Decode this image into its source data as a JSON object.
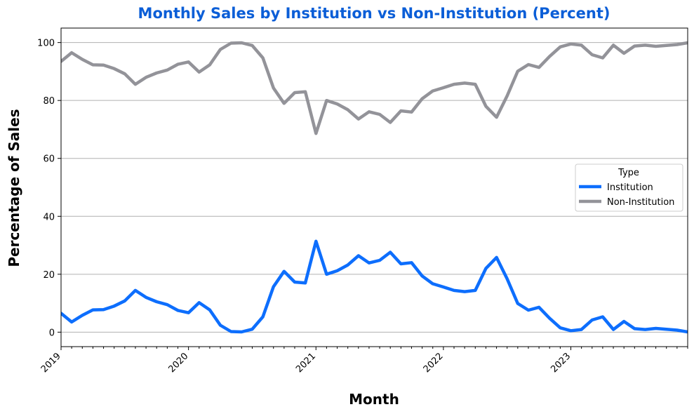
{
  "colors": {
    "title": "#0b5ed7",
    "grid": "#b0b0b0"
  },
  "chart_data": {
    "type": "line",
    "title": "Monthly Sales by Institution vs Non-Institution (Percent)",
    "xlabel": "Month",
    "ylabel": "Percentage of Sales",
    "x_tick_labels": [
      "2019",
      "2020",
      "2021",
      "2022",
      "2023"
    ],
    "y_ticks": [
      0,
      20,
      40,
      60,
      80,
      100
    ],
    "ylim": [
      -5,
      105
    ],
    "grid": "horizontal",
    "legend": {
      "title": "Type",
      "placement": "center-right"
    },
    "x": [
      "2019-01",
      "2019-02",
      "2019-03",
      "2019-04",
      "2019-05",
      "2019-06",
      "2019-07",
      "2019-08",
      "2019-09",
      "2019-10",
      "2019-11",
      "2019-12",
      "2020-01",
      "2020-02",
      "2020-03",
      "2020-04",
      "2020-05",
      "2020-06",
      "2020-07",
      "2020-08",
      "2020-09",
      "2020-10",
      "2020-11",
      "2020-12",
      "2021-01",
      "2021-02",
      "2021-03",
      "2021-04",
      "2021-05",
      "2021-06",
      "2021-07",
      "2021-08",
      "2021-09",
      "2021-10",
      "2021-11",
      "2021-12",
      "2022-01",
      "2022-02",
      "2022-03",
      "2022-04",
      "2022-05",
      "2022-06",
      "2022-07",
      "2022-08",
      "2022-09",
      "2022-10",
      "2022-11",
      "2022-12",
      "2023-01",
      "2023-02",
      "2023-03",
      "2023-04",
      "2023-05",
      "2023-06",
      "2023-07",
      "2023-08",
      "2023-09",
      "2023-10",
      "2023-11",
      "2023-12"
    ],
    "series": [
      {
        "name": "Institution",
        "color": "#0d6efd",
        "values": [
          6.5,
          3.5,
          5.8,
          7.7,
          7.8,
          9.0,
          10.8,
          14.4,
          12.0,
          10.5,
          9.5,
          7.5,
          6.7,
          10.2,
          7.7,
          2.4,
          0.2,
          0.1,
          1.0,
          5.3,
          15.7,
          21.0,
          17.3,
          17.0,
          31.4,
          20.0,
          21.2,
          23.2,
          26.4,
          23.9,
          24.8,
          27.6,
          23.6,
          24.0,
          19.4,
          16.7,
          15.6,
          14.4,
          14.0,
          14.4,
          22.0,
          25.8,
          18.4,
          9.9,
          7.6,
          8.6,
          4.8,
          1.5,
          0.5,
          0.9,
          4.2,
          5.3,
          0.9,
          3.7,
          1.2,
          0.9,
          1.3,
          1.0,
          0.7,
          0.1
        ]
      },
      {
        "name": "Non-Institution",
        "color": "#939399",
        "values": [
          93.5,
          96.5,
          94.2,
          92.3,
          92.2,
          91.0,
          89.2,
          85.6,
          88.0,
          89.5,
          90.5,
          92.5,
          93.3,
          89.8,
          92.3,
          97.6,
          99.8,
          99.9,
          99.0,
          94.7,
          84.3,
          79.0,
          82.7,
          83.0,
          68.6,
          80.0,
          78.8,
          76.8,
          73.6,
          76.1,
          75.2,
          72.4,
          76.4,
          76.0,
          80.6,
          83.3,
          84.4,
          85.6,
          86.0,
          85.6,
          78.0,
          74.2,
          81.6,
          90.1,
          92.4,
          91.4,
          95.2,
          98.5,
          99.5,
          99.1,
          95.8,
          94.7,
          99.1,
          96.3,
          98.8,
          99.1,
          98.7,
          99.0,
          99.3,
          99.9
        ]
      }
    ]
  }
}
